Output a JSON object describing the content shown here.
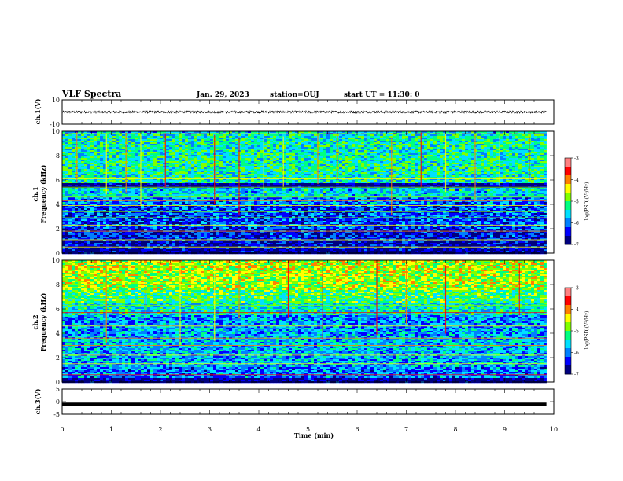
{
  "header": {
    "title": "VLF Spectra",
    "date": "Jan. 29, 2023",
    "station": "station=OUJ",
    "start_time": "start UT =  11:30: 0"
  },
  "chart_data": [
    {
      "type": "line",
      "panel": "ch1-waveform",
      "ylabel": "ch.1(V)",
      "ylim": [
        -10,
        10
      ],
      "yticks": [
        "10",
        "-10"
      ],
      "baseline": 0,
      "note_visible": "noisy trace around 0 V, amplitude about 1 V"
    },
    {
      "type": "heatmap",
      "panel": "ch1-spectrogram",
      "ylabel_line1": "ch.1",
      "ylabel_line2": "Frequency (kHz)",
      "ylim": [
        0,
        10
      ],
      "yticks": [
        "0",
        "2",
        "4",
        "6",
        "8",
        "10"
      ],
      "colorbar_label": "log(PSD)(V²/Hz)",
      "colorbar_range": [
        -7,
        -3
      ],
      "colorbar_ticks": [
        "-3",
        "-4",
        "-5",
        "-6",
        "-7"
      ],
      "bands_khz_logpsd": [
        [
          0,
          0.3,
          -6.8
        ],
        [
          0.3,
          1.0,
          -6.6
        ],
        [
          1.0,
          2.0,
          -6.4
        ],
        [
          2.0,
          3.0,
          -6.2
        ],
        [
          3.0,
          4.0,
          -6.2
        ],
        [
          4.0,
          4.6,
          -6.0
        ],
        [
          4.6,
          5.3,
          -5.6
        ],
        [
          5.3,
          5.7,
          -6.8
        ],
        [
          5.7,
          6.5,
          -5.4
        ],
        [
          6.5,
          8.0,
          -5.3
        ],
        [
          8.0,
          9.7,
          -5.4
        ],
        [
          9.7,
          10.0,
          -5.6
        ]
      ],
      "emission_lines_khz": [
        0.5,
        1.1,
        1.8,
        2.3,
        2.9,
        3.4,
        3.9,
        4.3,
        4.6,
        5.4,
        6.1,
        9.8
      ],
      "impulse_times_min": [
        0.3,
        0.9,
        1.3,
        1.6,
        2.1,
        2.6,
        3.1,
        3.6,
        4.1,
        4.5,
        5.2,
        5.6,
        6.2,
        6.7,
        7.3,
        7.8,
        8.4,
        8.9,
        9.5
      ]
    },
    {
      "type": "heatmap",
      "panel": "ch2-spectrogram",
      "ylabel_line1": "ch.2",
      "ylabel_line2": "Frequency (kHz)",
      "ylim": [
        0,
        10
      ],
      "yticks": [
        "0",
        "2",
        "4",
        "6",
        "8",
        "10"
      ],
      "colorbar_label": "log(PSD)(V²/Hz)",
      "colorbar_range": [
        -7,
        -3
      ],
      "colorbar_ticks": [
        "-3",
        "-4",
        "-5",
        "-6",
        "-7"
      ],
      "bands_khz_logpsd": [
        [
          0,
          0.3,
          -6.8
        ],
        [
          0.3,
          1.2,
          -6.0
        ],
        [
          1.2,
          2.5,
          -5.8
        ],
        [
          2.5,
          3.5,
          -5.7
        ],
        [
          3.5,
          4.5,
          -5.8
        ],
        [
          4.5,
          5.5,
          -5.9
        ],
        [
          5.5,
          6.5,
          -5.5
        ],
        [
          6.5,
          7.5,
          -5.1
        ],
        [
          7.5,
          9.0,
          -4.7
        ],
        [
          9.0,
          10.0,
          -4.6
        ]
      ],
      "emission_lines_khz": [
        0.6,
        1.5,
        2.2,
        3.0,
        3.6,
        4.1,
        4.6,
        5.7,
        6.3,
        6.8
      ],
      "impulse_times_min": [
        0.9,
        1.7,
        2.4,
        3.1,
        3.6,
        4.6,
        5.3,
        6.2,
        6.4,
        7.0,
        7.8,
        8.6,
        9.3
      ]
    },
    {
      "type": "line",
      "panel": "ch3-waveform",
      "ylabel": "ch.3(V)",
      "ylim": [
        -5,
        5
      ],
      "yticks": [
        "5",
        "0",
        "-5"
      ],
      "baseline": -1,
      "note_visible": "flat thick trace near -1 V"
    }
  ],
  "xaxis": {
    "label": "Time (min)",
    "range": [
      0,
      10
    ],
    "data_end": 9.85,
    "ticks": [
      "0",
      "1",
      "2",
      "3",
      "4",
      "5",
      "6",
      "7",
      "8",
      "9",
      "10"
    ]
  },
  "colormap": [
    "#000080",
    "#0000ff",
    "#0080ff",
    "#00e0ff",
    "#00ff80",
    "#80ff00",
    "#ffff00",
    "#ff8000",
    "#ff0000",
    "#ff8080"
  ]
}
